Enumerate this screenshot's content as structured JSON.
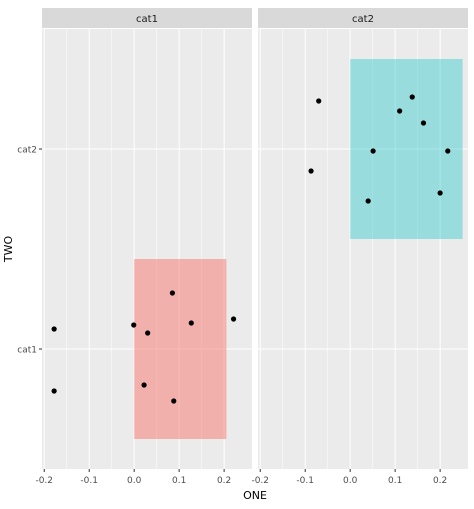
{
  "chart_data": {
    "type": "scatter",
    "xlabel": "ONE",
    "ylabel": "TWO",
    "x_ticks": [
      -0.2,
      -0.1,
      0.0,
      0.1,
      0.2
    ],
    "x_tick_labels": [
      "-0.2",
      "-0.1",
      "0.0",
      "0.1",
      "0.2"
    ],
    "y_categories": [
      "cat1",
      "cat2"
    ],
    "grid": true,
    "facets": [
      {
        "label": "cat1",
        "xlim": [
          -0.205,
          0.262
        ],
        "ylim": [
          0.4,
          2.6
        ],
        "rect": {
          "xmin": 0.0,
          "xmax": 0.205,
          "ymin": 0.55,
          "ymax": 1.45,
          "fill": "#F8766D",
          "opacity": 0.5
        },
        "points": [
          {
            "x": -0.178,
            "y": 1.1
          },
          {
            "x": -0.178,
            "y": 0.79
          },
          {
            "x": -0.001,
            "y": 1.12
          },
          {
            "x": 0.085,
            "y": 1.28
          },
          {
            "x": 0.03,
            "y": 1.08
          },
          {
            "x": 0.127,
            "y": 1.13
          },
          {
            "x": 0.221,
            "y": 1.15
          },
          {
            "x": 0.022,
            "y": 0.82
          },
          {
            "x": 0.088,
            "y": 0.74
          }
        ]
      },
      {
        "label": "cat2",
        "xlim": [
          -0.205,
          0.262
        ],
        "ylim": [
          0.4,
          2.6
        ],
        "rect": {
          "xmin": 0.0,
          "xmax": 0.25,
          "ymin": 1.55,
          "ymax": 2.45,
          "fill": "#00BFC4",
          "opacity": 0.35
        },
        "points": [
          {
            "x": -0.07,
            "y": 2.24
          },
          {
            "x": -0.087,
            "y": 1.89
          },
          {
            "x": 0.138,
            "y": 2.26
          },
          {
            "x": 0.11,
            "y": 2.19
          },
          {
            "x": 0.163,
            "y": 2.13
          },
          {
            "x": 0.051,
            "y": 1.99
          },
          {
            "x": 0.217,
            "y": 1.99
          },
          {
            "x": 0.2,
            "y": 1.78
          },
          {
            "x": 0.04,
            "y": 1.74
          }
        ]
      }
    ]
  }
}
